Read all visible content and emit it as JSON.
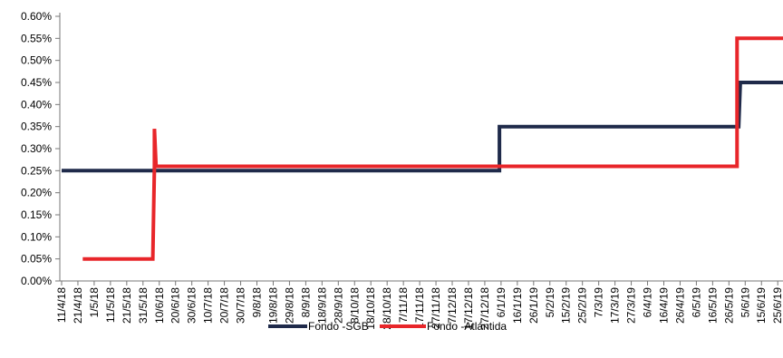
{
  "chart_data": {
    "type": "line",
    "x": [
      "11/4/18",
      "21/4/18",
      "1/5/18",
      "11/5/18",
      "21/5/18",
      "31/5/18",
      "10/6/18",
      "20/6/18",
      "30/6/18",
      "10/7/18",
      "20/7/18",
      "30/7/18",
      "9/8/18",
      "19/8/18",
      "29/8/18",
      "8/9/18",
      "18/9/18",
      "28/9/18",
      "8/10/18",
      "18/10/18",
      "28/10/18",
      "7/11/18",
      "17/11/18",
      "27/11/18",
      "7/12/18",
      "17/12/18",
      "27/12/18",
      "6/1/19",
      "16/1/19",
      "26/1/19",
      "5/2/19",
      "15/2/19",
      "25/2/19",
      "7/3/19",
      "17/3/19",
      "27/3/19",
      "6/4/19",
      "16/4/19",
      "26/4/19",
      "6/5/19",
      "16/5/19",
      "26/5/19",
      "5/6/19",
      "15/6/19",
      "25/6/19"
    ],
    "ylim": [
      0,
      0.006
    ],
    "y_ticks": [
      "0.00%",
      "0.05%",
      "0.10%",
      "0.15%",
      "0.20%",
      "0.25%",
      "0.30%",
      "0.35%",
      "0.40%",
      "0.45%",
      "0.50%",
      "0.55%",
      "0.60%"
    ],
    "series": [
      {
        "name": "Fondo -SGB",
        "color": "#1f2a4a",
        "points": [
          [
            "11/4/18",
            0.0025
          ],
          [
            "5/1/19",
            0.0025
          ],
          [
            "5/1/19",
            0.0035
          ],
          [
            "1/6/19",
            0.0035
          ],
          [
            "2/6/19",
            0.0045
          ],
          [
            "30/6/19",
            0.0045
          ]
        ]
      },
      {
        "name": "Fondo -Atlántida",
        "color": "#e8262a",
        "points": [
          [
            "24/4/18",
            0.0005
          ],
          [
            "6/6/18",
            0.0005
          ],
          [
            "7/6/18",
            0.0026
          ],
          [
            "7/6/18",
            0.00345
          ],
          [
            "8/6/18",
            0.0026
          ],
          [
            "31/5/19",
            0.0026
          ],
          [
            "31/5/19",
            0.0055
          ],
          [
            "30/6/19",
            0.0055
          ]
        ]
      }
    ],
    "grid": false,
    "legend_position": "bottom"
  }
}
